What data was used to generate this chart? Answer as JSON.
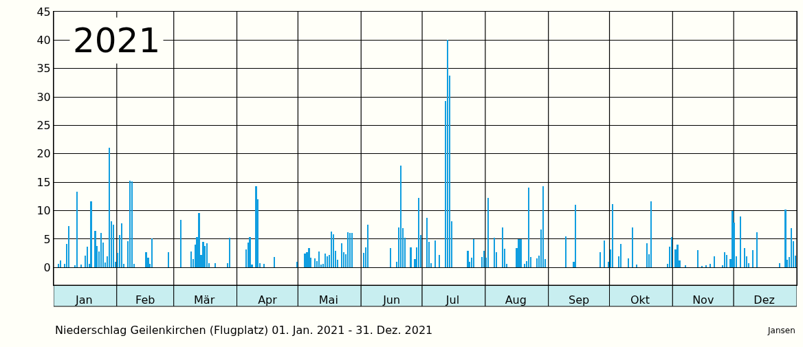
{
  "chart_data": {
    "type": "bar",
    "title": "2021",
    "annotations": [
      "Niederschlag Geilenkirchen (Flugplatz) 01. Jan. 2021 - 31. Dez. 2021",
      "Jansen"
    ],
    "x": [
      "2021-01-03",
      "2021-01-04",
      "2021-01-06",
      "2021-01-07",
      "2021-01-08",
      "2021-01-11",
      "2021-01-12",
      "2021-01-14",
      "2021-01-16",
      "2021-01-17",
      "2021-01-18",
      "2021-01-19",
      "2021-01-21",
      "2021-01-22",
      "2021-01-23",
      "2021-01-24",
      "2021-01-25",
      "2021-01-26",
      "2021-01-27",
      "2021-01-28",
      "2021-01-29",
      "2021-01-30",
      "2021-01-31",
      "2021-02-01",
      "2021-02-02",
      "2021-02-03",
      "2021-02-04",
      "2021-02-06",
      "2021-02-07",
      "2021-02-08",
      "2021-02-09",
      "2021-02-15",
      "2021-02-16",
      "2021-02-17",
      "2021-02-18",
      "2021-02-26",
      "2021-03-04",
      "2021-03-09",
      "2021-03-10",
      "2021-03-11",
      "2021-03-12",
      "2021-03-13",
      "2021-03-14",
      "2021-03-15",
      "2021-03-16",
      "2021-03-17",
      "2021-03-18",
      "2021-03-21",
      "2021-03-27",
      "2021-03-28",
      "2021-04-05",
      "2021-04-06",
      "2021-04-07",
      "2021-04-08",
      "2021-04-10",
      "2021-04-11",
      "2021-04-12",
      "2021-04-14",
      "2021-04-19",
      "2021-04-30",
      "2021-05-04",
      "2021-05-05",
      "2021-05-06",
      "2021-05-07",
      "2021-05-09",
      "2021-05-10",
      "2021-05-11",
      "2021-05-12",
      "2021-05-13",
      "2021-05-14",
      "2021-05-15",
      "2021-05-16",
      "2021-05-17",
      "2021-05-18",
      "2021-05-19",
      "2021-05-20",
      "2021-05-22",
      "2021-05-23",
      "2021-05-24",
      "2021-05-25",
      "2021-05-26",
      "2021-05-27",
      "2021-06-02",
      "2021-06-03",
      "2021-06-04",
      "2021-06-15",
      "2021-06-18",
      "2021-06-19",
      "2021-06-20",
      "2021-06-21",
      "2021-06-22",
      "2021-06-25",
      "2021-06-27",
      "2021-06-28",
      "2021-06-29",
      "2021-06-30",
      "2021-07-03",
      "2021-07-04",
      "2021-07-05",
      "2021-07-07",
      "2021-07-09",
      "2021-07-12",
      "2021-07-13",
      "2021-07-14",
      "2021-07-15",
      "2021-07-23",
      "2021-07-24",
      "2021-07-25",
      "2021-07-26",
      "2021-07-30",
      "2021-07-31",
      "2021-08-01",
      "2021-08-02",
      "2021-08-05",
      "2021-08-06",
      "2021-08-09",
      "2021-08-10",
      "2021-08-11",
      "2021-08-16",
      "2021-08-17",
      "2021-08-18",
      "2021-08-20",
      "2021-08-21",
      "2021-08-22",
      "2021-08-23",
      "2021-08-26",
      "2021-08-27",
      "2021-08-28",
      "2021-08-29",
      "2021-08-30",
      "2021-09-09",
      "2021-09-13",
      "2021-09-14",
      "2021-09-26",
      "2021-09-28",
      "2021-09-30",
      "2021-10-01",
      "2021-10-02",
      "2021-10-05",
      "2021-10-06",
      "2021-10-10",
      "2021-10-12",
      "2021-10-14",
      "2021-10-19",
      "2021-10-20",
      "2021-10-21",
      "2021-10-29",
      "2021-10-30",
      "2021-10-31",
      "2021-11-02",
      "2021-11-03",
      "2021-11-04",
      "2021-11-07",
      "2021-11-13",
      "2021-11-15",
      "2021-11-17",
      "2021-11-19",
      "2021-11-21",
      "2021-11-25",
      "2021-11-26",
      "2021-11-27",
      "2021-11-29",
      "2021-11-30",
      "2021-12-01",
      "2021-12-02",
      "2021-12-04",
      "2021-12-06",
      "2021-12-07",
      "2021-12-08",
      "2021-12-10",
      "2021-12-12",
      "2021-12-23",
      "2021-12-26",
      "2021-12-27",
      "2021-12-28",
      "2021-12-29",
      "2021-12-30",
      "2021-12-31"
    ],
    "series": [
      {
        "color": "#119ee0",
        "values": [
          0.6,
          1.2,
          0.6,
          4.1,
          7.3,
          0.4,
          13.3,
          0.5,
          2.1,
          3.7,
          0.6,
          11.6,
          6.5,
          3.8,
          2.8,
          6.1,
          4.4,
          0.9,
          2.0,
          21.1,
          8.2,
          7.5,
          1.0,
          2.6,
          5.7,
          7.8,
          0.6,
          4.6,
          15.3,
          15.2,
          0.6,
          2.7,
          1.7,
          0.6,
          5.1,
          2.7,
          8.4,
          2.8,
          1.5,
          4.0,
          5.3,
          9.6,
          2.2,
          4.5,
          3.8,
          4.3,
          0.8,
          0.8,
          0.8,
          5.2,
          3.2,
          4.4,
          5.3,
          0.5,
          14.3,
          12.0,
          0.8,
          0.6,
          1.8,
          1.0,
          2.4,
          2.7,
          3.4,
          1.7,
          1.6,
          1.1,
          2.8,
          0.5,
          0.6,
          2.4,
          2.0,
          2.2,
          6.3,
          5.9,
          2.9,
          1.4,
          4.3,
          2.7,
          2.3,
          6.2,
          6.1,
          6.1,
          2.6,
          3.5,
          7.5,
          3.4,
          1.0,
          7.0,
          17.9,
          6.9,
          5.2,
          3.5,
          1.5,
          3.5,
          12.2,
          5.7,
          8.7,
          4.5,
          0.8,
          4.7,
          2.2,
          29.3,
          40.0,
          33.8,
          8.2,
          2.9,
          1.0,
          1.7,
          5.0,
          1.8,
          2.9,
          1.7,
          12.3,
          5.2,
          2.7,
          7.0,
          3.3,
          0.6,
          3.4,
          5.0,
          5.0,
          0.6,
          1.1,
          14.1,
          1.8,
          1.6,
          2.1,
          6.7,
          14.3,
          1.5,
          5.5,
          1.0,
          11.0,
          2.7,
          4.7,
          1.0,
          3.2,
          11.2,
          2.0,
          4.1,
          1.6,
          7.0,
          0.5,
          4.3,
          2.3,
          11.7,
          0.6,
          3.7,
          5.3,
          3.2,
          4.0,
          1.2,
          0.4,
          3.1,
          0.3,
          0.4,
          0.6,
          2.0,
          0.4,
          2.7,
          2.2,
          1.5,
          10.0,
          7.9,
          2.0,
          9.0,
          3.4,
          2.0,
          0.8,
          3.1,
          6.2,
          0.8,
          10.2,
          1.4,
          1.8,
          6.9,
          4.6,
          2.1
        ]
      }
    ],
    "xlim": [
      "2021-01-01",
      "2022-01-01"
    ],
    "xticks": [
      {
        "value": "2021-01-01",
        "label": null
      },
      {
        "value": "2021-01-16",
        "label": "Jan"
      },
      {
        "value": "2021-02-01",
        "label": null
      },
      {
        "value": "2021-02-15",
        "label": "Feb"
      },
      {
        "value": "2021-03-01",
        "label": null
      },
      {
        "value": "2021-03-16",
        "label": "Mär"
      },
      {
        "value": "2021-04-01",
        "label": null
      },
      {
        "value": "2021-04-16",
        "label": "Apr"
      },
      {
        "value": "2021-05-01",
        "label": null
      },
      {
        "value": "2021-05-16",
        "label": "Mai"
      },
      {
        "value": "2021-06-01",
        "label": null
      },
      {
        "value": "2021-06-16",
        "label": "Jun"
      },
      {
        "value": "2021-07-01",
        "label": null
      },
      {
        "value": "2021-07-16",
        "label": "Jul"
      },
      {
        "value": "2021-08-01",
        "label": null
      },
      {
        "value": "2021-08-16",
        "label": "Aug"
      },
      {
        "value": "2021-09-01",
        "label": null
      },
      {
        "value": "2021-09-16",
        "label": "Sep"
      },
      {
        "value": "2021-10-01",
        "label": null
      },
      {
        "value": "2021-10-16",
        "label": "Okt"
      },
      {
        "value": "2021-11-01",
        "label": null
      },
      {
        "value": "2021-11-16",
        "label": "Nov"
      },
      {
        "value": "2021-12-01",
        "label": null
      },
      {
        "value": "2021-12-16",
        "label": "Dez"
      },
      {
        "value": "2022-01-01",
        "label": null
      }
    ],
    "ylim": [
      -3.1,
      45
    ],
    "yticks": [
      0,
      5,
      10,
      15,
      20,
      25,
      30,
      35,
      40,
      45
    ],
    "grid": true
  }
}
